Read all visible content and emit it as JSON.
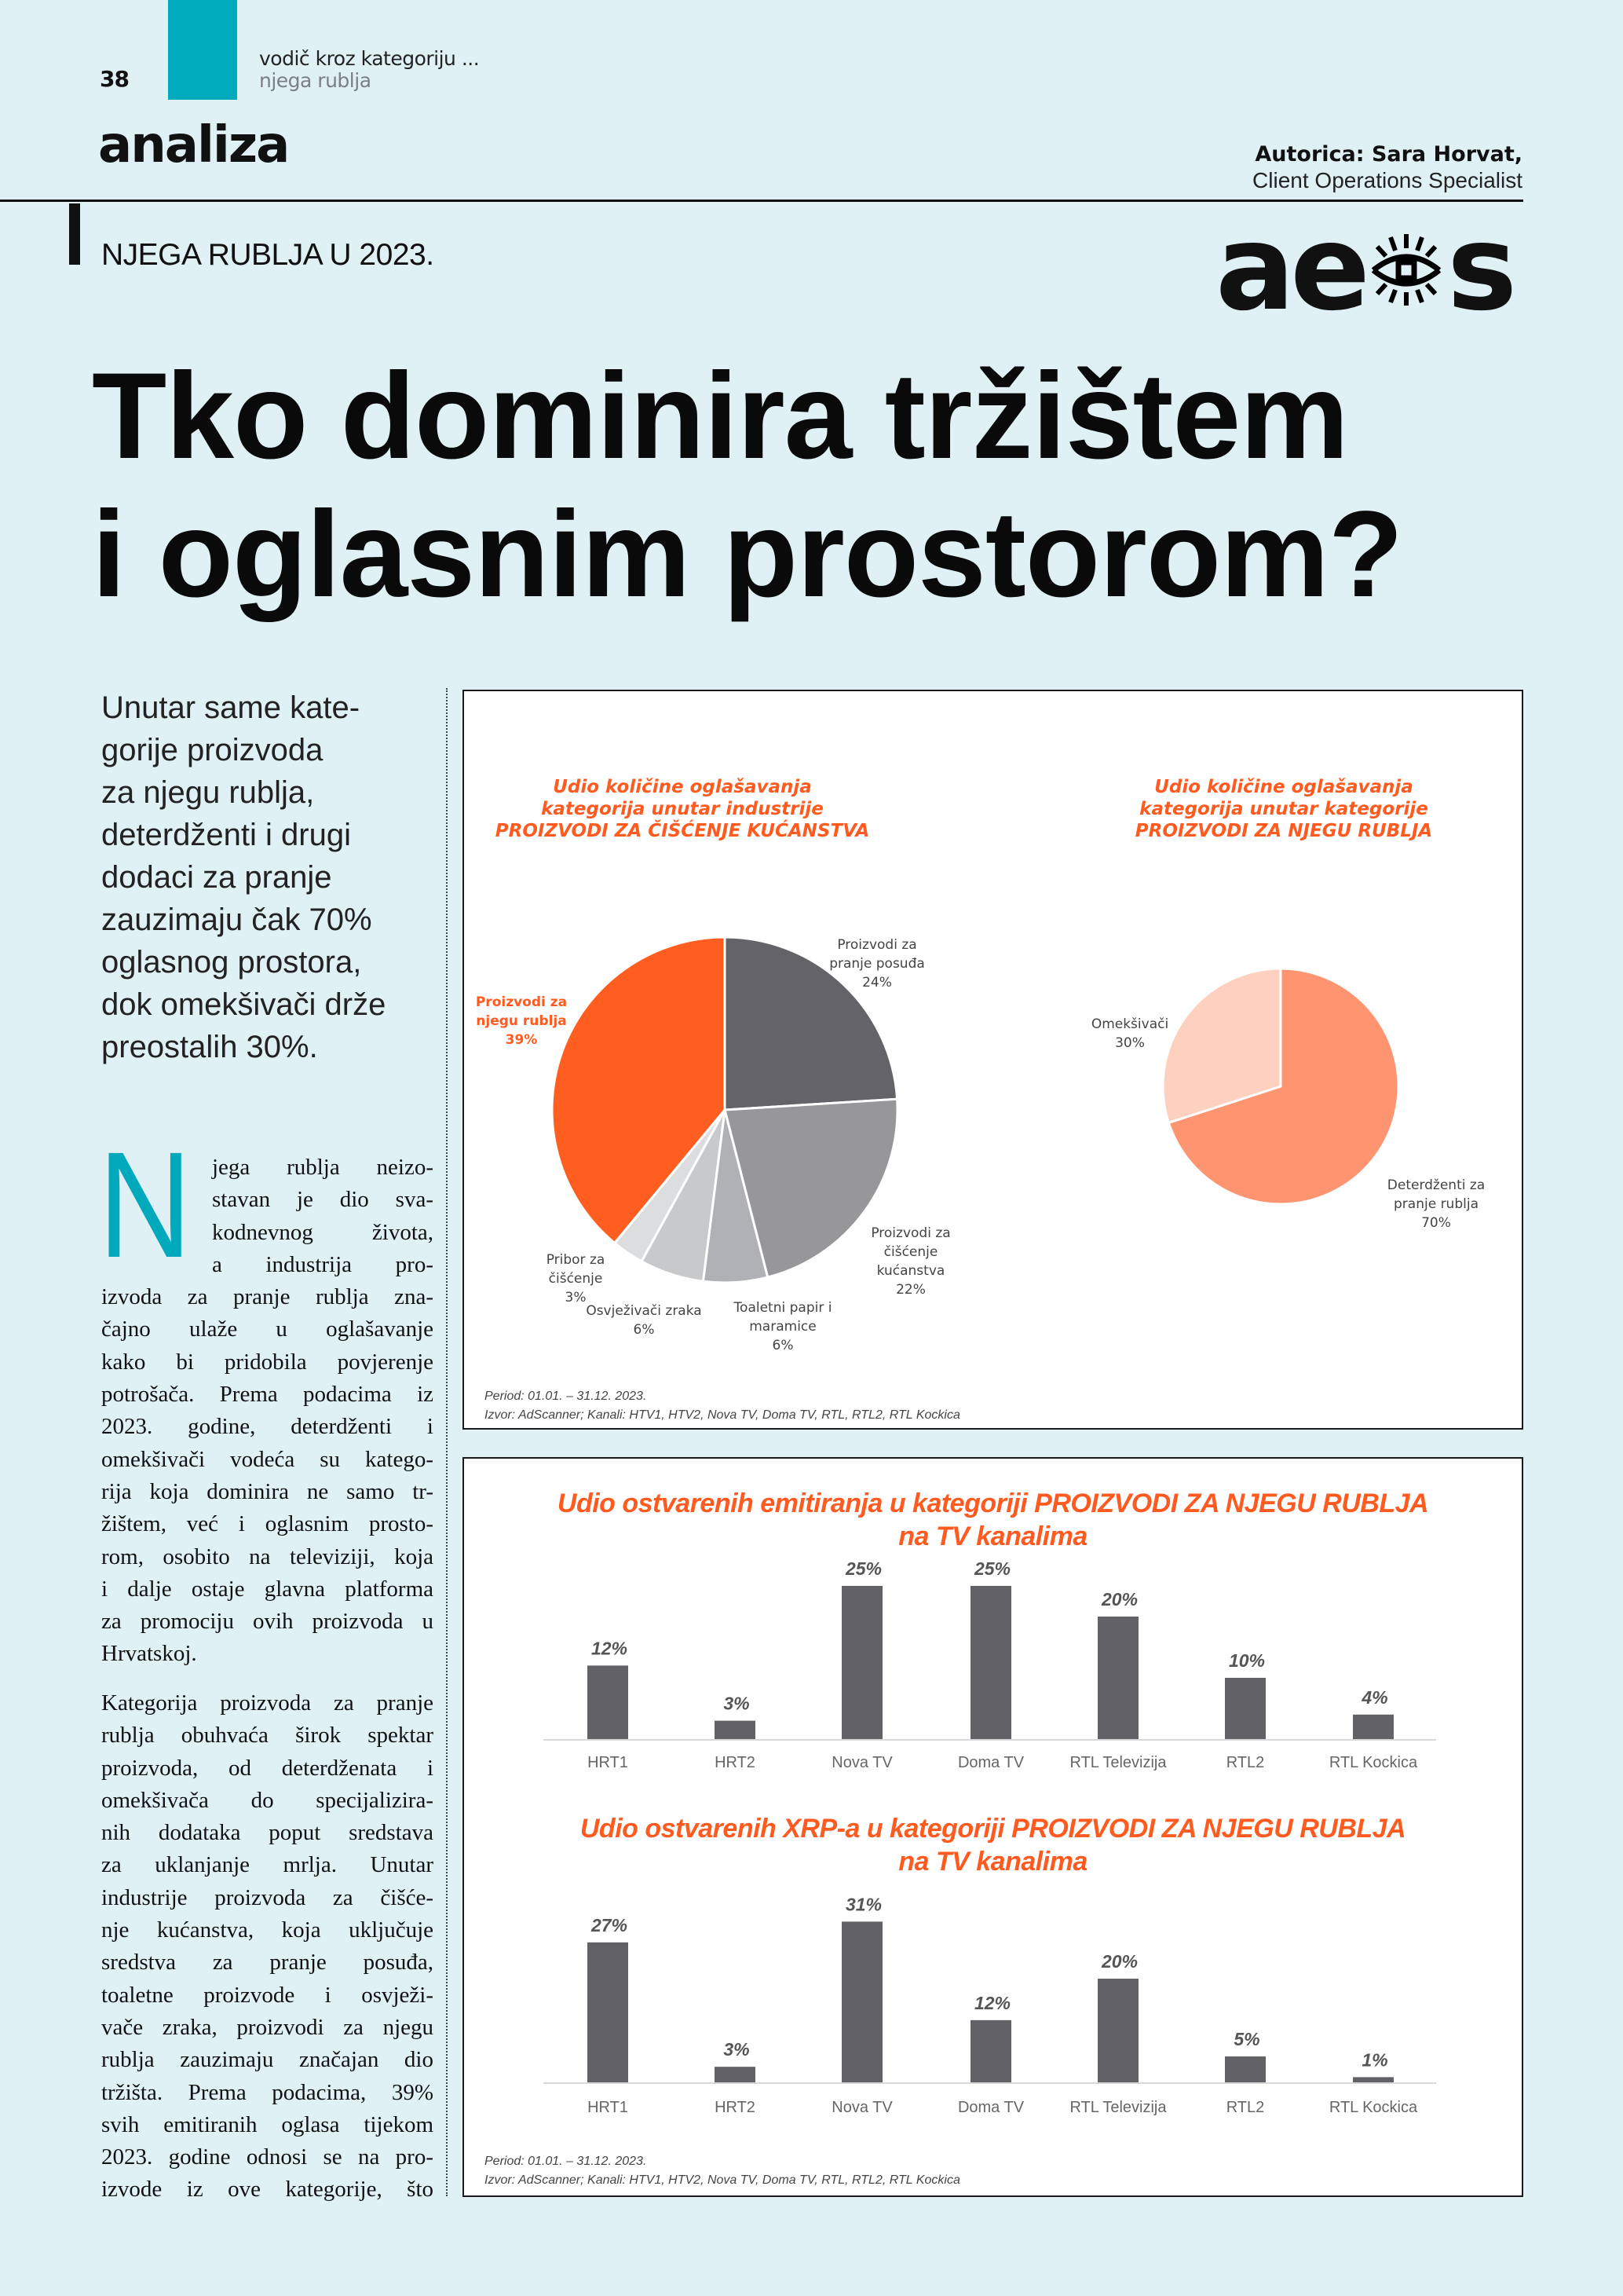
{
  "header": {
    "page_number": "38",
    "kicker": "vodič kroz kategoriju ...",
    "kicker_sub": "njega rublja",
    "section": "analiza",
    "author_name": "Autorica: Sara Horvat,",
    "author_role": "Client Operations Specialist",
    "subhead": "NJEGA RUBLJA U 2023.",
    "logo_text": "aeos",
    "accent_color": "#00abbd"
  },
  "headline": [
    "Tko dominira tržištem",
    "i oglasnim prostorom?"
  ],
  "intro_lines": [
    "Unutar same kate-",
    "gorije proizvoda",
    "za njegu rublja,",
    "deterdženti i drugi",
    "dodaci za pranje",
    "zauzimaju čak 70%",
    "oglasnog prostora,",
    "dok omekšivači drže",
    "preostalih 30%."
  ],
  "body": {
    "drop_cap": "N",
    "paragraph1": [
      "jega rublja neizo-",
      "stavan je dio sva-",
      "kodnevnog života,",
      "a industrija pro-",
      "izvoda za pranje rublja zna-",
      "čajno ulaže u oglašavanje",
      "kako bi pridobila povjerenje",
      "potrošača. Prema podacima iz",
      "2023. godine, deterdženti i",
      "omekšivači vodeća su katego-",
      "rija koja dominira ne samo tr-",
      "žištem, već i oglasnim prosto-",
      "rom, osobito na televiziji, koja",
      "i dalje ostaje glavna platforma",
      "za promociju ovih proizvoda u",
      "Hrvatskoj."
    ],
    "paragraph2": [
      "Kategorija proizvoda za pranje",
      "rublja obuhvaća širok spektar",
      "proizvoda, od deterdženata i",
      "omekšivača do specijalizira-",
      "nih dodataka poput sredstava",
      "za uklanjanje mrlja. Unutar",
      "industrije proizvoda za čišće-",
      "nje kućanstva, koja uključuje",
      "sredstva za pranje posuđa,",
      "toaletne proizvode i osvježi-",
      "vače zraka, proizvodi za njegu",
      "rublja zauzimaju značajan dio",
      "tržišta. Prema podacima, 39%",
      "svih emitiranih oglasa tijekom",
      "2023. godine odnosi se na pro-",
      "izvode iz ove kategorije, što"
    ]
  },
  "notes": {
    "period": "Period: 01.01. – 31.12. 2023.",
    "source": "Izvor: AdScanner; Kanali: HTV1, HTV2, Nova TV, Doma TV, RTL, RTL2, RTL Kockica"
  },
  "chart_data": [
    {
      "type": "pie",
      "title": [
        "Udio količine oglašavanja",
        "kategorija unutar industrije",
        "PROIZVODI ZA ČIŠĆENJE KUĆANSTVA"
      ],
      "unit": "%",
      "slices": [
        {
          "label": [
            "Proizvodi za",
            "pranje posuđa"
          ],
          "value": 24,
          "color": "#646468"
        },
        {
          "label": [
            "Proizvodi za",
            "čišćenje",
            "kućanstva"
          ],
          "value": 22,
          "color": "#97979a"
        },
        {
          "label": [
            "Toaletni papir i",
            "maramice"
          ],
          "value": 6,
          "color": "#b0b1b4"
        },
        {
          "label": [
            "Osvježivači zraka"
          ],
          "value": 6,
          "color": "#c8c9cb"
        },
        {
          "label": [
            "Pribor za",
            "čišćenje"
          ],
          "value": 3,
          "color": "#dcdddf"
        },
        {
          "label": [
            "Proizvodi za",
            "njegu rublja"
          ],
          "value": 39,
          "color": "#ff5e20",
          "highlight": true
        }
      ]
    },
    {
      "type": "pie",
      "title": [
        "Udio količine oglašavanja",
        "kategorija unutar kategorije",
        "PROIZVODI ZA NJEGU RUBLJA"
      ],
      "unit": "%",
      "slices": [
        {
          "label": [
            "Deterdženti za",
            "pranje rublja"
          ],
          "value": 70,
          "color": "#ff9470"
        },
        {
          "label": [
            "Omekšivači"
          ],
          "value": 30,
          "color": "#fdd0bf"
        }
      ]
    },
    {
      "type": "bar",
      "title": [
        "Udio ostvarenih emitiranja u kategoriji PROIZVODI ZA NJEGU RUBLJA",
        "na TV kanalima"
      ],
      "categories": [
        "HRT1",
        "HRT2",
        "Nova TV",
        "Doma TV",
        "RTL Televizija",
        "RTL2",
        "RTL Kockica"
      ],
      "values": [
        12,
        3,
        25,
        25,
        20,
        10,
        4
      ],
      "unit": "%",
      "bar_color": "#626266",
      "grid": false
    },
    {
      "type": "bar",
      "title": [
        "Udio ostvarenih XRP-a u kategoriji PROIZVODI ZA NJEGU RUBLJA",
        "na TV kanalima"
      ],
      "categories": [
        "HRT1",
        "HRT2",
        "Nova TV",
        "Doma TV",
        "RTL Televizija",
        "RTL2",
        "RTL Kockica"
      ],
      "values": [
        27,
        3,
        31,
        12,
        20,
        5,
        1
      ],
      "unit": "%",
      "bar_color": "#626266",
      "grid": false
    }
  ]
}
